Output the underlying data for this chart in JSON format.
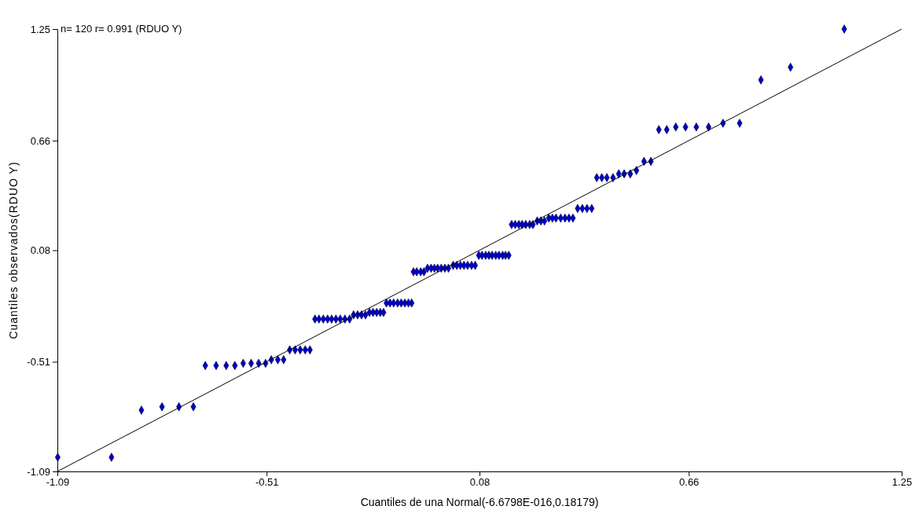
{
  "chart_data": {
    "type": "scatter",
    "xlabel": "Cuantiles de una Normal(-6.6798E-016,0.18179)",
    "ylabel": "Cuantiles observados(RDUO Y)",
    "annotations": [
      "n= 120 r= 0.991 (RDUO Y)"
    ],
    "xlim": [
      -1.09,
      1.25
    ],
    "xticks": [
      -1.09,
      -0.51,
      0.08,
      0.66,
      1.25
    ],
    "ylim": [
      -1.09,
      1.25
    ],
    "yticks": [
      -1.09,
      -0.51,
      0.08,
      0.66,
      1.25
    ],
    "grid": false,
    "series": [
      {
        "color": "#0000cc",
        "marker": "diamond",
        "x": [
          -1.089,
          -0.94,
          -0.857,
          -0.8,
          -0.753,
          -0.713,
          -0.68,
          -0.65,
          -0.622,
          -0.598,
          -0.575,
          -0.553,
          -0.532,
          -0.513,
          -0.497,
          -0.479,
          -0.463,
          -0.446,
          -0.431,
          -0.417,
          -0.403,
          -0.39,
          -0.376,
          -0.365,
          -0.353,
          -0.341,
          -0.33,
          -0.318,
          -0.306,
          -0.293,
          -0.28,
          -0.269,
          -0.258,
          -0.247,
          -0.236,
          -0.225,
          -0.215,
          -0.205,
          -0.195,
          -0.186,
          -0.178,
          -0.168,
          -0.158,
          -0.147,
          -0.137,
          -0.127,
          -0.117,
          -0.108,
          -0.103,
          -0.094,
          -0.083,
          -0.074,
          -0.064,
          -0.054,
          -0.045,
          -0.036,
          -0.026,
          -0.016,
          -0.006,
          0.007,
          0.017,
          0.027,
          0.037,
          0.047,
          0.058,
          0.068,
          0.078,
          0.087,
          0.097,
          0.106,
          0.115,
          0.125,
          0.134,
          0.144,
          0.152,
          0.161,
          0.169,
          0.179,
          0.189,
          0.198,
          0.208,
          0.219,
          0.228,
          0.24,
          0.25,
          0.26,
          0.272,
          0.282,
          0.292,
          0.305,
          0.317,
          0.328,
          0.339,
          0.352,
          0.365,
          0.378,
          0.391,
          0.405,
          0.419,
          0.433,
          0.45,
          0.466,
          0.481,
          0.498,
          0.515,
          0.536,
          0.555,
          0.577,
          0.599,
          0.624,
          0.651,
          0.681,
          0.715,
          0.755,
          0.801,
          0.86,
          0.942,
          1.091
        ],
        "values": [
          -1.015,
          -1.015,
          -0.766,
          -0.748,
          -0.748,
          -0.748,
          -0.53,
          -0.53,
          -0.53,
          -0.53,
          -0.518,
          -0.518,
          -0.518,
          -0.518,
          -0.499,
          -0.499,
          -0.499,
          -0.447,
          -0.447,
          -0.447,
          -0.447,
          -0.447,
          -0.284,
          -0.284,
          -0.284,
          -0.284,
          -0.284,
          -0.284,
          -0.284,
          -0.284,
          -0.284,
          -0.262,
          -0.262,
          -0.262,
          -0.262,
          -0.249,
          -0.249,
          -0.249,
          -0.249,
          -0.249,
          -0.199,
          -0.199,
          -0.199,
          -0.199,
          -0.199,
          -0.199,
          -0.199,
          -0.199,
          -0.034,
          -0.034,
          -0.034,
          -0.034,
          -0.015,
          -0.015,
          -0.015,
          -0.015,
          -0.015,
          -0.015,
          -0.015,
          0.0,
          0.0,
          0.0,
          0.0,
          0.0,
          0.0,
          0.0,
          0.053,
          0.053,
          0.053,
          0.053,
          0.053,
          0.053,
          0.053,
          0.053,
          0.053,
          0.053,
          0.216,
          0.216,
          0.216,
          0.216,
          0.216,
          0.216,
          0.216,
          0.235,
          0.235,
          0.235,
          0.25,
          0.25,
          0.25,
          0.25,
          0.25,
          0.25,
          0.25,
          0.301,
          0.301,
          0.301,
          0.301,
          0.464,
          0.464,
          0.464,
          0.464,
          0.484,
          0.484,
          0.484,
          0.502,
          0.55,
          0.55,
          0.718,
          0.718,
          0.732,
          0.732,
          0.732,
          0.732,
          0.752,
          0.752,
          0.981,
          1.048,
          1.25
        ]
      },
      {
        "type": "line",
        "color": "#000000",
        "marker": "none",
        "x": [
          -1.09,
          1.25
        ],
        "values": [
          -1.09,
          1.25
        ]
      }
    ]
  }
}
